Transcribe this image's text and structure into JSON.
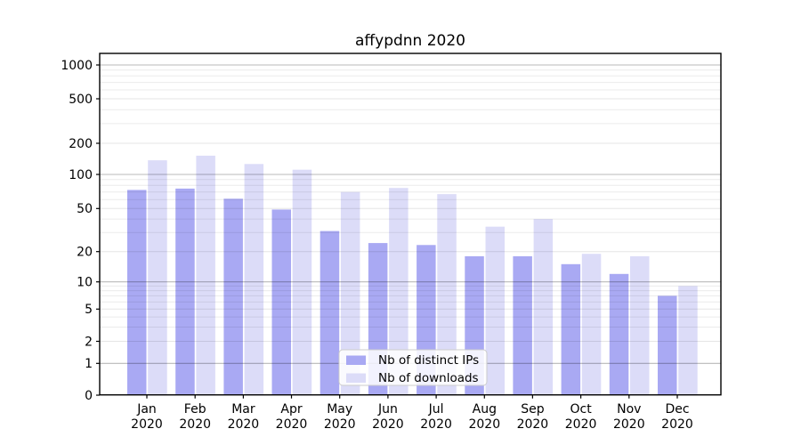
{
  "figure": {
    "title": "affypdnn 2020"
  },
  "chart_data": {
    "type": "bar",
    "title": "affypdnn 2020",
    "x_tick_months": [
      "Jan",
      "Feb",
      "Mar",
      "Apr",
      "May",
      "Jun",
      "Jul",
      "Aug",
      "Sep",
      "Oct",
      "Nov",
      "Dec"
    ],
    "x_tick_year": "2020",
    "categories": [
      "Jan 2020",
      "Feb 2020",
      "Mar 2020",
      "Apr 2020",
      "May 2020",
      "Jun 2020",
      "Jul 2020",
      "Aug 2020",
      "Sep 2020",
      "Oct 2020",
      "Nov 2020",
      "Dec 2020"
    ],
    "series": [
      {
        "name": "Nb of distinct IPs",
        "color": "#a9a9f3",
        "values": [
          73,
          75,
          61,
          49,
          31,
          24,
          23,
          18,
          18,
          15,
          12,
          7
        ]
      },
      {
        "name": "Nb of downloads",
        "color": "#dcdcf8",
        "values": [
          137,
          152,
          126,
          111,
          70,
          76,
          67,
          34,
          40,
          19,
          18,
          9
        ]
      }
    ],
    "y_axis": {
      "scale": "symlog",
      "ticks": [
        0,
        1,
        2,
        5,
        10,
        20,
        50,
        100,
        200,
        500,
        1000
      ],
      "range": [
        0,
        1000
      ]
    },
    "legend": {
      "position": "lower center",
      "entries": [
        "Nb of distinct IPs",
        "Nb of downloads"
      ]
    },
    "grid": "on"
  }
}
